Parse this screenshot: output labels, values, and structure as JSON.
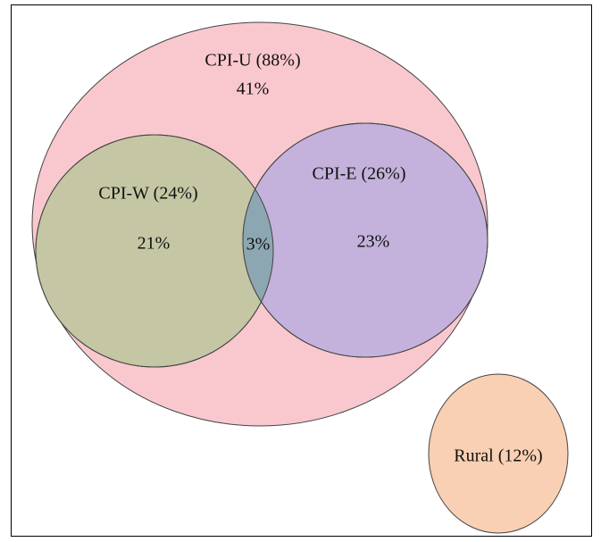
{
  "sets": [
    {
      "label": "CPI-U (88%)",
      "region": "41%"
    },
    {
      "label": "CPI-W (24%)",
      "region": "21%"
    },
    {
      "label": "CPI-E (26%)",
      "region": "23%"
    },
    {
      "label": "Rural (12%)"
    }
  ],
  "intersections": [
    {
      "region": "3%"
    }
  ]
}
